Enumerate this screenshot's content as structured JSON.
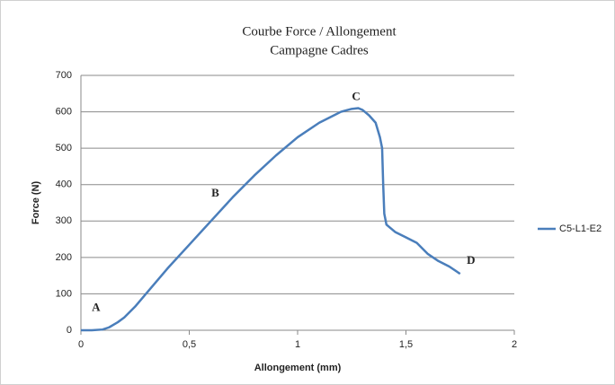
{
  "chart_data": {
    "type": "line",
    "title": "Courbe Force / Allongement",
    "subtitle": "Campagne Cadres",
    "xlabel": "Allongement (mm)",
    "ylabel": "Force (N)",
    "x": [
      0,
      0.05,
      0.1,
      0.13,
      0.17,
      0.2,
      0.25,
      0.3,
      0.4,
      0.5,
      0.6,
      0.7,
      0.8,
      0.9,
      1.0,
      1.1,
      1.2,
      1.25,
      1.28,
      1.3,
      1.33,
      1.36,
      1.38,
      1.39,
      1.395,
      1.4,
      1.41,
      1.45,
      1.5,
      1.55,
      1.6,
      1.65,
      1.7,
      1.75
    ],
    "series": [
      {
        "name": "C5-L1-E2",
        "color": "#4a7ebb",
        "values": [
          0,
          0,
          2,
          8,
          22,
          35,
          65,
          100,
          170,
          235,
          300,
          365,
          425,
          480,
          530,
          570,
          600,
          608,
          610,
          605,
          590,
          570,
          530,
          500,
          400,
          320,
          290,
          270,
          255,
          240,
          210,
          190,
          175,
          155
        ]
      }
    ],
    "xlim": [
      0,
      2
    ],
    "xticks": [
      0,
      {
        "value": 0.5,
        "label": "0,5"
      },
      1,
      {
        "value": 1.5,
        "label": "1,5"
      },
      2
    ],
    "ylim": [
      0,
      700
    ],
    "yticks": [
      0,
      100,
      200,
      300,
      400,
      500,
      600,
      700
    ],
    "grid": true,
    "legend": "right",
    "annotations": [
      {
        "text": "A",
        "x": 0.07,
        "y": 60
      },
      {
        "text": "B",
        "x": 0.62,
        "y": 375
      },
      {
        "text": "C",
        "x": 1.27,
        "y": 640
      },
      {
        "text": "D",
        "x": 1.8,
        "y": 190
      }
    ]
  }
}
